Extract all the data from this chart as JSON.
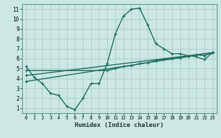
{
  "xlabel": "Humidex (Indice chaleur)",
  "xlim": [
    -0.5,
    23.5
  ],
  "ylim": [
    0.5,
    11.5
  ],
  "xticks": [
    0,
    1,
    2,
    3,
    4,
    5,
    6,
    7,
    8,
    9,
    10,
    11,
    12,
    13,
    14,
    15,
    16,
    17,
    18,
    19,
    20,
    21,
    22,
    23
  ],
  "yticks": [
    1,
    2,
    3,
    4,
    5,
    6,
    7,
    8,
    9,
    10,
    11
  ],
  "background_color": "#cce8e4",
  "grid_color": "#aacfca",
  "line_color": "#1a6b5a",
  "line1_x": [
    0,
    1,
    2,
    3,
    4,
    5,
    6,
    7,
    8,
    9,
    10,
    11,
    12,
    13,
    14,
    15,
    16,
    17,
    18,
    19,
    20,
    21,
    22,
    23
  ],
  "line1_y": [
    5.2,
    4.1,
    3.5,
    2.5,
    2.3,
    1.2,
    0.85,
    2.0,
    3.5,
    3.5,
    5.5,
    8.5,
    10.3,
    11.0,
    11.1,
    9.4,
    7.5,
    7.0,
    6.5,
    6.5,
    6.3,
    6.2,
    5.9,
    6.6
  ],
  "line2_x": [
    0,
    23
  ],
  "line2_y": [
    4.3,
    6.6
  ],
  "line3_x": [
    0,
    23
  ],
  "line3_y": [
    3.7,
    6.6
  ],
  "line4_x": [
    0,
    10,
    11,
    12,
    13,
    14,
    15,
    16,
    17,
    18,
    19,
    20,
    21,
    22,
    23
  ],
  "line4_y": [
    4.8,
    4.8,
    5.0,
    5.2,
    5.3,
    5.5,
    5.6,
    5.8,
    5.9,
    6.0,
    6.1,
    6.2,
    6.4,
    6.3,
    6.6
  ]
}
